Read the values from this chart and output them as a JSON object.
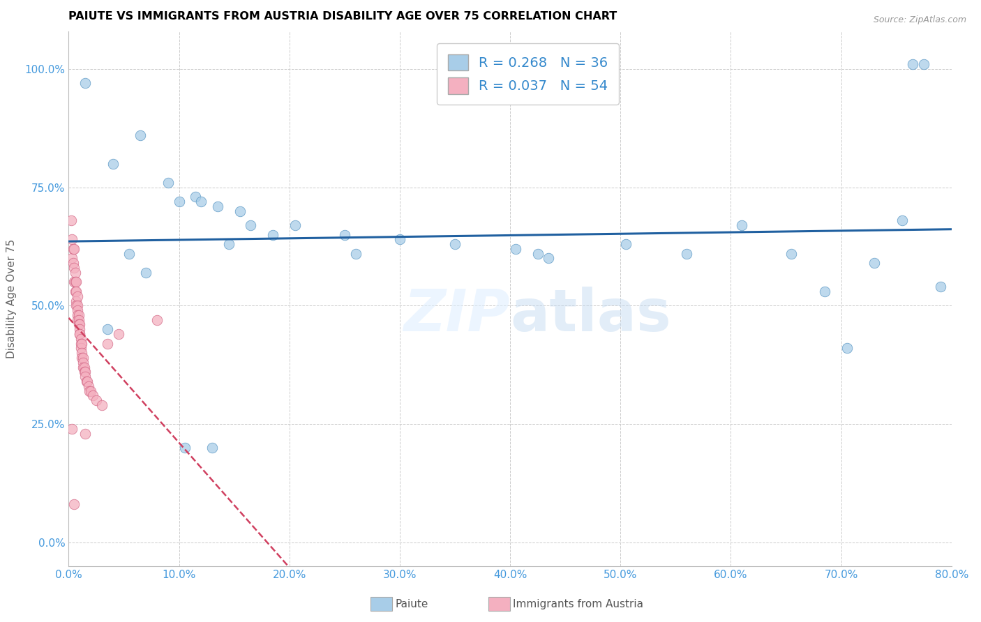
{
  "title": "PAIUTE VS IMMIGRANTS FROM AUSTRIA DISABILITY AGE OVER 75 CORRELATION CHART",
  "source": "Source: ZipAtlas.com",
  "xlabel_vals": [
    0.0,
    0.1,
    0.2,
    0.3,
    0.4,
    0.5,
    0.6,
    0.7,
    0.8
  ],
  "ylabel_vals": [
    0.0,
    0.25,
    0.5,
    0.75,
    1.0
  ],
  "xmin": 0.0,
  "xmax": 0.8,
  "ymin": -0.05,
  "ymax": 1.08,
  "legend_label1": "Paiute",
  "legend_label2": "Immigrants from Austria",
  "R1": 0.268,
  "N1": 36,
  "R2": 0.037,
  "N2": 54,
  "blue_color": "#a8cde8",
  "pink_color": "#f4b0c0",
  "blue_edge_color": "#5090c0",
  "pink_edge_color": "#d06080",
  "blue_line_color": "#2060a0",
  "pink_line_color": "#d04060",
  "ylabel": "Disability Age Over 75",
  "watermark": "ZIPatlas",
  "blue_dots": [
    [
      0.015,
      0.97
    ],
    [
      0.04,
      0.8
    ],
    [
      0.065,
      0.86
    ],
    [
      0.09,
      0.76
    ],
    [
      0.1,
      0.72
    ],
    [
      0.115,
      0.73
    ],
    [
      0.12,
      0.72
    ],
    [
      0.135,
      0.71
    ],
    [
      0.145,
      0.63
    ],
    [
      0.155,
      0.7
    ],
    [
      0.165,
      0.67
    ],
    [
      0.185,
      0.65
    ],
    [
      0.205,
      0.67
    ],
    [
      0.25,
      0.65
    ],
    [
      0.26,
      0.61
    ],
    [
      0.3,
      0.64
    ],
    [
      0.35,
      0.63
    ],
    [
      0.405,
      0.62
    ],
    [
      0.425,
      0.61
    ],
    [
      0.435,
      0.6
    ],
    [
      0.505,
      0.63
    ],
    [
      0.56,
      0.61
    ],
    [
      0.61,
      0.67
    ],
    [
      0.655,
      0.61
    ],
    [
      0.685,
      0.53
    ],
    [
      0.705,
      0.41
    ],
    [
      0.73,
      0.59
    ],
    [
      0.755,
      0.68
    ],
    [
      0.765,
      1.01
    ],
    [
      0.775,
      1.01
    ],
    [
      0.79,
      0.54
    ],
    [
      0.105,
      0.2
    ],
    [
      0.13,
      0.2
    ],
    [
      0.035,
      0.45
    ],
    [
      0.055,
      0.61
    ],
    [
      0.07,
      0.57
    ]
  ],
  "pink_dots": [
    [
      0.002,
      0.68
    ],
    [
      0.003,
      0.64
    ],
    [
      0.003,
      0.6
    ],
    [
      0.004,
      0.62
    ],
    [
      0.004,
      0.59
    ],
    [
      0.005,
      0.62
    ],
    [
      0.005,
      0.58
    ],
    [
      0.005,
      0.55
    ],
    [
      0.006,
      0.57
    ],
    [
      0.006,
      0.55
    ],
    [
      0.006,
      0.53
    ],
    [
      0.007,
      0.55
    ],
    [
      0.007,
      0.53
    ],
    [
      0.007,
      0.51
    ],
    [
      0.007,
      0.5
    ],
    [
      0.008,
      0.52
    ],
    [
      0.008,
      0.5
    ],
    [
      0.008,
      0.49
    ],
    [
      0.008,
      0.48
    ],
    [
      0.008,
      0.47
    ],
    [
      0.009,
      0.48
    ],
    [
      0.009,
      0.47
    ],
    [
      0.009,
      0.46
    ],
    [
      0.01,
      0.46
    ],
    [
      0.01,
      0.45
    ],
    [
      0.01,
      0.44
    ],
    [
      0.01,
      0.44
    ],
    [
      0.011,
      0.43
    ],
    [
      0.011,
      0.42
    ],
    [
      0.011,
      0.41
    ],
    [
      0.012,
      0.42
    ],
    [
      0.012,
      0.4
    ],
    [
      0.012,
      0.39
    ],
    [
      0.013,
      0.39
    ],
    [
      0.013,
      0.38
    ],
    [
      0.013,
      0.37
    ],
    [
      0.014,
      0.37
    ],
    [
      0.014,
      0.36
    ],
    [
      0.015,
      0.36
    ],
    [
      0.015,
      0.35
    ],
    [
      0.016,
      0.34
    ],
    [
      0.017,
      0.34
    ],
    [
      0.018,
      0.33
    ],
    [
      0.019,
      0.32
    ],
    [
      0.02,
      0.32
    ],
    [
      0.022,
      0.31
    ],
    [
      0.025,
      0.3
    ],
    [
      0.03,
      0.29
    ],
    [
      0.035,
      0.42
    ],
    [
      0.045,
      0.44
    ],
    [
      0.003,
      0.24
    ],
    [
      0.015,
      0.23
    ],
    [
      0.005,
      0.08
    ],
    [
      0.08,
      0.47
    ]
  ]
}
